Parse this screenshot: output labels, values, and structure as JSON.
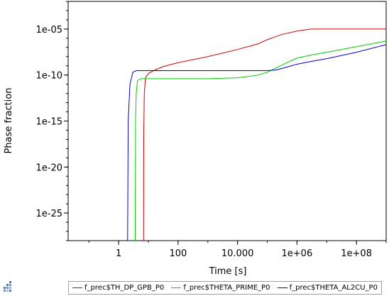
{
  "chart_data": {
    "type": "line",
    "title": "",
    "xlabel": "Time [s]",
    "ylabel": "Phase fraction",
    "x_scale": "log",
    "y_scale": "log",
    "xlim": [
      0.02,
      1000000000.0
    ],
    "ylim": [
      1e-28,
      0.01
    ],
    "x_ticks": [
      {
        "value": 1,
        "label": "1"
      },
      {
        "value": 100,
        "label": "100"
      },
      {
        "value": 10000,
        "label": "10.000"
      },
      {
        "value": 1000000,
        "label": "1e+06"
      },
      {
        "value": 100000000,
        "label": "1e+08"
      }
    ],
    "y_ticks": [
      {
        "value": 1e-25,
        "label": "1e-25"
      },
      {
        "value": 1e-20,
        "label": "1e-20"
      },
      {
        "value": 1e-15,
        "label": "1e-15"
      },
      {
        "value": 1e-10,
        "label": "1e-10"
      },
      {
        "value": 1e-05,
        "label": "1e-05"
      }
    ],
    "grid": false,
    "legend_position": "bottom",
    "series": [
      {
        "name": "f_prec$TH_DP_GPB_P0",
        "color": "#cc0000",
        "points": [
          [
            6.9,
            1e-28
          ],
          [
            7.0,
            1e-16
          ],
          [
            7.3,
            1e-12
          ],
          [
            8,
            5e-11
          ],
          [
            10,
            1.5e-10
          ],
          [
            15,
            3e-10
          ],
          [
            30,
            8e-10
          ],
          [
            100,
            2.2e-09
          ],
          [
            1000,
            1e-08
          ],
          [
            10000,
            6e-08
          ],
          [
            50000,
            2.5e-07
          ],
          [
            100000,
            7e-07
          ],
          [
            300000,
            2.5e-06
          ],
          [
            1000000,
            6e-06
          ],
          [
            3000000,
            1e-05
          ],
          [
            100000000,
            1e-05
          ],
          [
            1000000000,
            1e-05
          ]
        ]
      },
      {
        "name": "f_prec$THETA_PRIME_P0",
        "color": "#00cc00",
        "points": [
          [
            3.6,
            1e-28
          ],
          [
            3.7,
            1e-15
          ],
          [
            3.9,
            1e-12
          ],
          [
            4.3,
            2.5e-11
          ],
          [
            5.5,
            4e-11
          ],
          [
            10,
            4e-11
          ],
          [
            1000,
            4e-11
          ],
          [
            10000,
            5e-11
          ],
          [
            50000,
            1e-10
          ],
          [
            100000,
            2e-10
          ],
          [
            200000,
            6e-10
          ],
          [
            500000,
            2.5e-09
          ],
          [
            1000000,
            7e-09
          ],
          [
            3000000,
            1.5e-08
          ],
          [
            10000000,
            3e-08
          ],
          [
            100000000,
            1.2e-07
          ],
          [
            1000000000,
            5e-07
          ]
        ]
      },
      {
        "name": "f_prec$THETA_AL2CU_P0",
        "color": "#0000cc",
        "points": [
          [
            2.0,
            1e-28
          ],
          [
            2.1,
            1e-15
          ],
          [
            2.4,
            1e-11
          ],
          [
            3.0,
            2e-10
          ],
          [
            4.0,
            3e-10
          ],
          [
            10,
            3e-10
          ],
          [
            100000,
            3e-10
          ],
          [
            200000,
            3.5e-10
          ],
          [
            500000,
            8e-10
          ],
          [
            1000000,
            1.5e-09
          ],
          [
            3000000,
            3e-09
          ],
          [
            10000000,
            6e-09
          ],
          [
            100000000,
            3e-08
          ],
          [
            1000000000,
            2e-07
          ]
        ]
      }
    ]
  }
}
